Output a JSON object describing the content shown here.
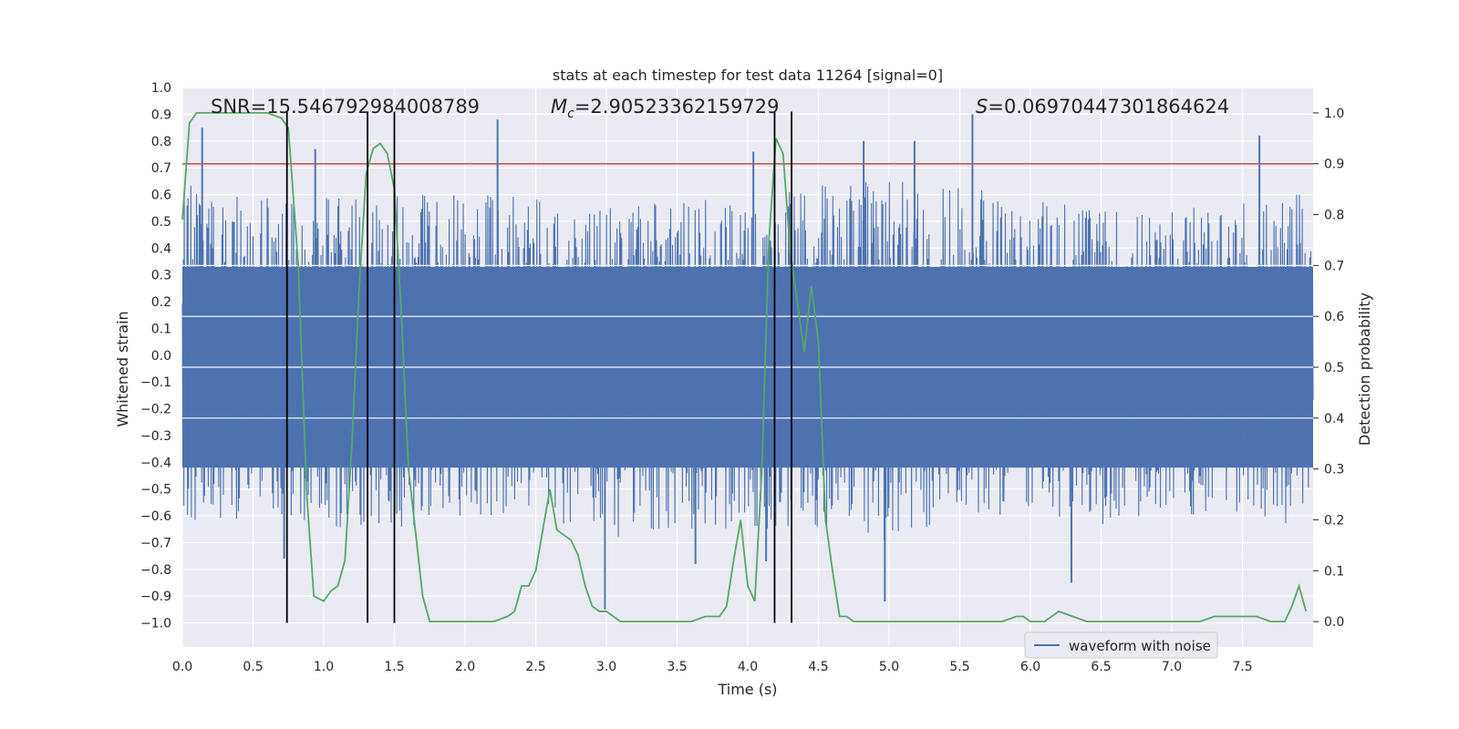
{
  "chart_data": {
    "type": "line",
    "title": "stats at each timestep for test data 11264 [signal=0]",
    "xlabel": "Time (s)",
    "ylabel": "Whitened strain",
    "y2label": "Detection probability",
    "xlim": [
      0.0,
      8.0
    ],
    "ylim": [
      -1.09,
      1.0
    ],
    "y2lim": [
      -0.05,
      1.05
    ],
    "xticks": [
      "0.0",
      "0.5",
      "1.0",
      "1.5",
      "2.0",
      "2.5",
      "3.0",
      "3.5",
      "4.0",
      "4.5",
      "5.0",
      "5.5",
      "6.0",
      "6.5",
      "7.0",
      "7.5"
    ],
    "yticks": [
      "1.0",
      "0.9",
      "0.8",
      "0.7",
      "0.6",
      "0.5",
      "0.4",
      "0.3",
      "0.2",
      "0.1",
      "0.0",
      "−0.1",
      "−0.2",
      "−0.3",
      "−0.4",
      "−0.5",
      "−0.6",
      "−0.7",
      "−0.8",
      "−0.9",
      "−1.0"
    ],
    "y2ticks": [
      "1.0",
      "0.9",
      "0.8",
      "0.7",
      "0.6",
      "0.5",
      "0.4",
      "0.3",
      "0.2",
      "0.1",
      "0.0"
    ],
    "annotations": {
      "snr": "SNR=15.546792984008789",
      "mc_sym": "M",
      "mc_sub": "c",
      "mc_val": "=2.90523362159729",
      "s_sym": "S",
      "s_val": "=0.06970447301864624"
    },
    "legend": {
      "label": "waveform with noise",
      "placement": "bottom-right"
    },
    "threshold_y2": 0.9,
    "vertical_lines_x": [
      0.74,
      1.31,
      1.5,
      4.19,
      4.31
    ],
    "waveform": {
      "name": "waveform with noise",
      "color": "#4c72b0",
      "note_envelope_times": [
        0.0,
        0.5,
        1.0,
        1.5,
        2.0,
        2.5,
        3.0,
        3.5,
        4.0,
        4.5,
        5.0,
        5.5,
        6.0,
        6.5,
        7.0,
        7.5,
        8.0
      ],
      "upper_peak_envelope": [
        0.66,
        0.6,
        0.6,
        0.6,
        0.6,
        0.6,
        0.55,
        0.6,
        0.6,
        0.65,
        0.65,
        0.65,
        0.6,
        0.55,
        0.55,
        0.6,
        0.6
      ],
      "lower_peak_envelope": [
        -0.65,
        -0.6,
        -0.65,
        -0.65,
        -0.6,
        -0.6,
        -0.7,
        -0.65,
        -0.65,
        -0.65,
        -0.7,
        -0.6,
        -0.6,
        -0.65,
        -0.6,
        -0.6,
        -0.65
      ],
      "notable_spikes": [
        {
          "x": 0.14,
          "y": 0.85
        },
        {
          "x": 0.94,
          "y": 0.77
        },
        {
          "x": 2.23,
          "y": 0.88
        },
        {
          "x": 4.04,
          "y": 0.76
        },
        {
          "x": 4.82,
          "y": 0.8
        },
        {
          "x": 5.18,
          "y": 0.8
        },
        {
          "x": 5.59,
          "y": 0.9
        },
        {
          "x": 7.62,
          "y": 0.82
        },
        {
          "x": 0.72,
          "y": -0.76
        },
        {
          "x": 2.99,
          "y": -0.95
        },
        {
          "x": 4.97,
          "y": -0.92
        },
        {
          "x": 6.29,
          "y": -0.85
        },
        {
          "x": 3.63,
          "y": -0.78
        },
        {
          "x": 4.13,
          "y": -0.77
        }
      ]
    },
    "probability": {
      "name": "detection probability",
      "color": "#55a868",
      "x": [
        0.0,
        0.05,
        0.1,
        0.2,
        0.3,
        0.4,
        0.5,
        0.6,
        0.7,
        0.75,
        0.82,
        0.88,
        0.93,
        1.0,
        1.05,
        1.1,
        1.15,
        1.2,
        1.25,
        1.3,
        1.35,
        1.4,
        1.45,
        1.5,
        1.55,
        1.6,
        1.7,
        1.75,
        1.8,
        1.9,
        2.0,
        2.1,
        2.2,
        2.3,
        2.35,
        2.4,
        2.45,
        2.5,
        2.55,
        2.6,
        2.65,
        2.7,
        2.75,
        2.8,
        2.85,
        2.9,
        2.95,
        3.0,
        3.1,
        3.2,
        3.3,
        3.4,
        3.5,
        3.6,
        3.7,
        3.8,
        3.85,
        3.9,
        3.95,
        4.0,
        4.05,
        4.1,
        4.15,
        4.2,
        4.25,
        4.3,
        4.35,
        4.4,
        4.45,
        4.5,
        4.55,
        4.6,
        4.65,
        4.7,
        4.75,
        4.85,
        5.0,
        5.2,
        5.4,
        5.6,
        5.8,
        5.9,
        5.95,
        6.0,
        6.1,
        6.2,
        6.3,
        6.4,
        6.6,
        6.8,
        7.0,
        7.2,
        7.3,
        7.4,
        7.5,
        7.6,
        7.7,
        7.8,
        7.85,
        7.9,
        7.95
      ],
      "y": [
        0.79,
        0.98,
        1.0,
        1.0,
        1.0,
        1.0,
        1.0,
        1.0,
        0.99,
        0.97,
        0.7,
        0.25,
        0.05,
        0.04,
        0.06,
        0.07,
        0.12,
        0.35,
        0.65,
        0.88,
        0.93,
        0.94,
        0.92,
        0.85,
        0.6,
        0.3,
        0.05,
        0.0,
        0.0,
        0.0,
        0.0,
        0.0,
        0.0,
        0.01,
        0.02,
        0.07,
        0.07,
        0.1,
        0.18,
        0.26,
        0.18,
        0.17,
        0.16,
        0.13,
        0.07,
        0.03,
        0.02,
        0.02,
        0.0,
        0.0,
        0.0,
        0.0,
        0.0,
        0.0,
        0.01,
        0.01,
        0.03,
        0.12,
        0.2,
        0.07,
        0.04,
        0.3,
        0.75,
        0.95,
        0.92,
        0.73,
        0.63,
        0.53,
        0.66,
        0.55,
        0.2,
        0.1,
        0.01,
        0.01,
        0.0,
        0.0,
        0.0,
        0.0,
        0.0,
        0.0,
        0.0,
        0.01,
        0.01,
        0.0,
        0.0,
        0.02,
        0.01,
        0.0,
        0.0,
        0.0,
        0.0,
        0.0,
        0.01,
        0.01,
        0.01,
        0.01,
        0.0,
        0.0,
        0.03,
        0.07,
        0.02
      ]
    }
  }
}
